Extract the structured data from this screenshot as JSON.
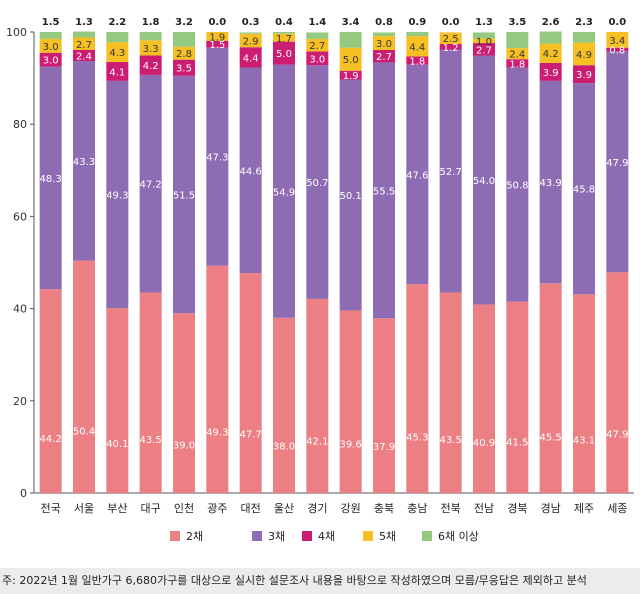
{
  "chart_data": {
    "type": "bar",
    "stacked": true,
    "categories": [
      "전국",
      "서울",
      "부산",
      "대구",
      "인천",
      "광주",
      "대전",
      "울산",
      "경기",
      "강원",
      "충북",
      "충남",
      "전북",
      "전남",
      "경북",
      "경남",
      "제주",
      "세종"
    ],
    "series": [
      {
        "name": "2채",
        "color": "#ec7f84",
        "values": [
          44.2,
          50.4,
          40.1,
          43.5,
          39.0,
          49.3,
          47.7,
          38.0,
          42.1,
          39.6,
          37.9,
          45.3,
          43.5,
          40.9,
          41.5,
          45.5,
          43.1,
          47.9
        ]
      },
      {
        "name": "3채",
        "color": "#8e6cb4",
        "values": [
          48.3,
          43.3,
          49.3,
          47.2,
          51.5,
          47.3,
          44.6,
          54.9,
          50.7,
          50.1,
          55.5,
          47.6,
          52.7,
          54.0,
          50.8,
          43.9,
          45.8,
          47.9
        ]
      },
      {
        "name": "4채",
        "color": "#cc1d73",
        "values": [
          3.0,
          2.4,
          4.1,
          4.2,
          3.5,
          1.5,
          4.4,
          5.0,
          3.0,
          1.9,
          2.7,
          1.8,
          1.2,
          2.7,
          1.8,
          3.9,
          3.9,
          0.8
        ]
      },
      {
        "name": "5채",
        "color": "#f6bf23",
        "values": [
          3.0,
          2.7,
          4.3,
          3.3,
          2.8,
          1.9,
          2.9,
          1.7,
          2.7,
          5.0,
          3.0,
          4.4,
          2.5,
          1.0,
          2.4,
          4.2,
          4.9,
          3.4
        ]
      },
      {
        "name": "6채 이상",
        "color": "#95c97f",
        "values": [
          1.5,
          1.3,
          2.2,
          1.8,
          3.2,
          0.0,
          0.3,
          0.4,
          1.4,
          3.4,
          0.8,
          0.9,
          0.0,
          1.3,
          3.5,
          2.6,
          2.3,
          0.0
        ]
      }
    ],
    "ylim": [
      0,
      100
    ],
    "yticks": [
      0,
      20,
      40,
      60,
      80,
      100
    ],
    "grid": false,
    "legend": "bottom",
    "title": "",
    "xlabel": "",
    "ylabel": ""
  },
  "footnote": "주: 2022년 1월 일반가구 6,680가구를 대상으로 실시한 설문조사 내용을 바탕으로 작성하였으며 모름/무응답은 제외하고 분석"
}
